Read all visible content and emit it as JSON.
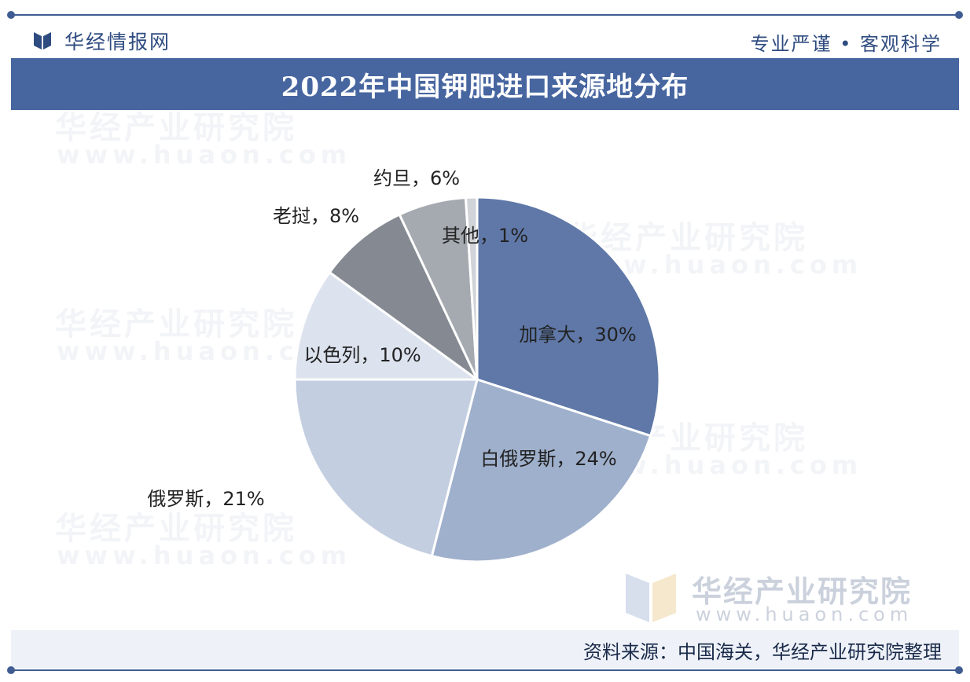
{
  "header": {
    "brand": "华经情报网",
    "slogan": "专业严谨 • 客观科学"
  },
  "chart_data": {
    "type": "pie",
    "title": "2022年中国钾肥进口来源地分布",
    "slices": [
      {
        "name": "加拿大",
        "value": 30,
        "color": "#5f78a8"
      },
      {
        "name": "白俄罗斯",
        "value": 24,
        "color": "#9fb0cc"
      },
      {
        "name": "俄罗斯",
        "value": 21,
        "color": "#c3cee0"
      },
      {
        "name": "以色列",
        "value": 10,
        "color": "#dde3ee"
      },
      {
        "name": "老挝",
        "value": 8,
        "color": "#858a92"
      },
      {
        "name": "约旦",
        "value": 6,
        "color": "#a5a9b0"
      },
      {
        "name": "其他",
        "value": 1,
        "color": "#d0d3d7"
      }
    ],
    "label_format": "{name}，{value}%"
  },
  "watermark": {
    "name": "华经产业研究院",
    "url": "www.huaon.com",
    "corner_url": "www.huaon.com"
  },
  "footer": {
    "source": "资料来源：中国海关，华经产业研究院整理"
  }
}
